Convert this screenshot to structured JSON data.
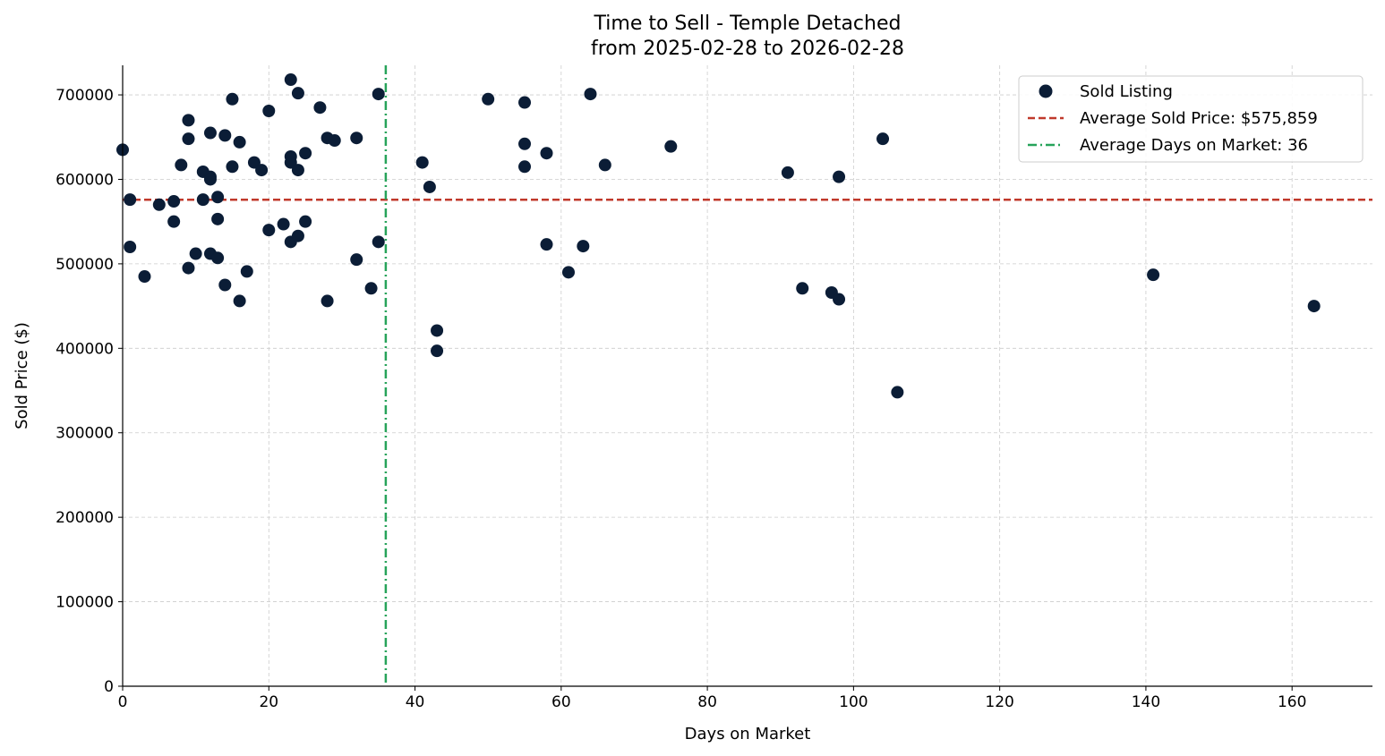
{
  "chart_data": {
    "type": "scatter",
    "title": "Time to Sell - Temple Detached",
    "subtitle": "from 2025-02-28 to 2026-02-28",
    "xlabel": "Days on Market",
    "ylabel": "Sold Price ($)",
    "xlim": [
      0,
      171
    ],
    "ylim": [
      0,
      735000
    ],
    "xticks": [
      0,
      20,
      40,
      60,
      80,
      100,
      120,
      140,
      160
    ],
    "yticks": [
      0,
      100000,
      200000,
      300000,
      400000,
      500000,
      600000,
      700000
    ],
    "grid": true,
    "legend_position": "top-right",
    "colors": {
      "points": "#0b1d36",
      "avg_price_line": "#c0392b",
      "avg_days_line": "#27a35a",
      "grid": "#cccccc",
      "axis": "#000000"
    },
    "legend": [
      {
        "key": "points",
        "label": "Sold Listing"
      },
      {
        "key": "avg_price",
        "label": "Average Sold Price: $575,859"
      },
      {
        "key": "avg_days",
        "label": "Average Days on Market: 36"
      }
    ],
    "average_sold_price": 575859,
    "average_days_on_market": 36,
    "points": [
      [
        0,
        635000
      ],
      [
        1,
        576000
      ],
      [
        1,
        520000
      ],
      [
        3,
        485000
      ],
      [
        5,
        570000
      ],
      [
        7,
        574000
      ],
      [
        7,
        550000
      ],
      [
        8,
        617000
      ],
      [
        9,
        670000
      ],
      [
        9,
        648000
      ],
      [
        9,
        495000
      ],
      [
        10,
        512000
      ],
      [
        11,
        609000
      ],
      [
        11,
        576000
      ],
      [
        12,
        655000
      ],
      [
        12,
        603000
      ],
      [
        12,
        600000
      ],
      [
        12,
        512000
      ],
      [
        13,
        579000
      ],
      [
        13,
        553000
      ],
      [
        13,
        507000
      ],
      [
        14,
        652000
      ],
      [
        14,
        475000
      ],
      [
        15,
        695000
      ],
      [
        15,
        615000
      ],
      [
        16,
        644000
      ],
      [
        16,
        456000
      ],
      [
        17,
        491000
      ],
      [
        18,
        620000
      ],
      [
        19,
        611000
      ],
      [
        20,
        681000
      ],
      [
        20,
        540000
      ],
      [
        22,
        547000
      ],
      [
        23,
        718000
      ],
      [
        23,
        627000
      ],
      [
        23,
        620000
      ],
      [
        23,
        526000
      ],
      [
        24,
        702000
      ],
      [
        24,
        611000
      ],
      [
        24,
        533000
      ],
      [
        25,
        631000
      ],
      [
        25,
        550000
      ],
      [
        27,
        685000
      ],
      [
        28,
        649000
      ],
      [
        28,
        456000
      ],
      [
        29,
        646000
      ],
      [
        32,
        649000
      ],
      [
        32,
        505000
      ],
      [
        34,
        471000
      ],
      [
        35,
        701000
      ],
      [
        35,
        526000
      ],
      [
        41,
        620000
      ],
      [
        42,
        591000
      ],
      [
        43,
        421000
      ],
      [
        43,
        397000
      ],
      [
        50,
        695000
      ],
      [
        55,
        691000
      ],
      [
        55,
        642000
      ],
      [
        55,
        615000
      ],
      [
        58,
        631000
      ],
      [
        58,
        523000
      ],
      [
        61,
        490000
      ],
      [
        63,
        521000
      ],
      [
        64,
        701000
      ],
      [
        66,
        617000
      ],
      [
        75,
        639000
      ],
      [
        91,
        608000
      ],
      [
        93,
        471000
      ],
      [
        97,
        466000
      ],
      [
        98,
        603000
      ],
      [
        98,
        458000
      ],
      [
        104,
        648000
      ],
      [
        106,
        348000
      ],
      [
        141,
        487000
      ],
      [
        163,
        450000
      ]
    ]
  }
}
